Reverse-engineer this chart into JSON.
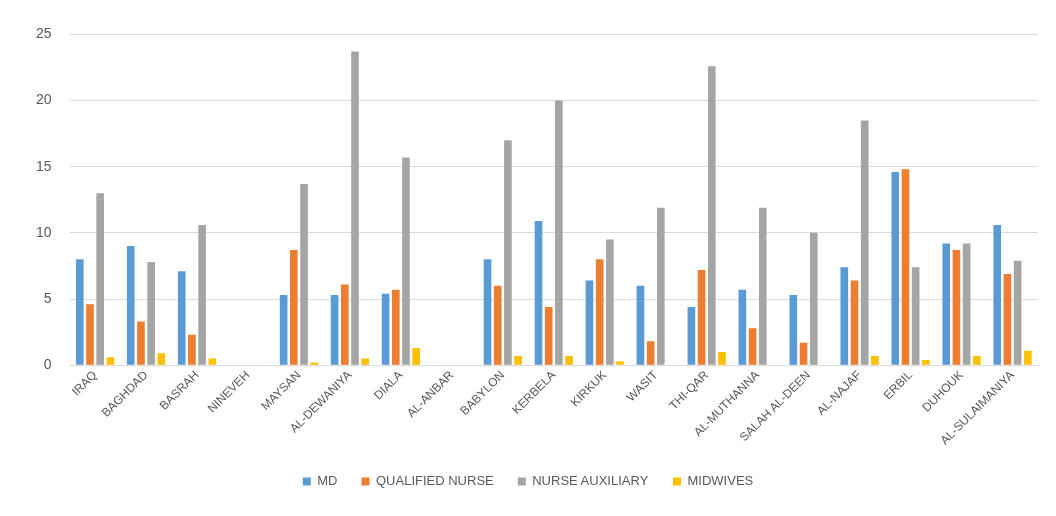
{
  "chart_data": {
    "type": "bar",
    "categories": [
      "IRAQ",
      "BAGHDAD",
      "BASRAH",
      "NINEVEH",
      "MAYSAN",
      "AL-DEWANIYA",
      "DIALA",
      "AL-ANBAR",
      "BABYLON",
      "KERBELA",
      "KIRKUK",
      "WASIT",
      "THI-QAR",
      "AL-MUTHANNA",
      "SALAH AL-DEEN",
      "AL-NAJAF",
      "ERBIL",
      "DUHOUK",
      "AL-SULAIMANIYA"
    ],
    "series": [
      {
        "name": "MD",
        "color": "#5b9bd5",
        "values": [
          8.0,
          9.0,
          7.1,
          null,
          5.3,
          5.3,
          5.4,
          null,
          8.0,
          10.9,
          6.4,
          6.0,
          4.4,
          5.7,
          5.3,
          7.4,
          14.6,
          9.2,
          10.6
        ]
      },
      {
        "name": "QUALIFIED NURSE",
        "color": "#ed7d31",
        "values": [
          4.6,
          3.3,
          2.3,
          null,
          8.7,
          6.1,
          5.7,
          null,
          6.0,
          4.4,
          8.0,
          1.8,
          7.2,
          2.8,
          1.7,
          6.4,
          14.8,
          8.7,
          6.9
        ]
      },
      {
        "name": "NURSE AUXILIARY",
        "color": "#a5a5a5",
        "values": [
          13.0,
          7.8,
          10.6,
          null,
          13.7,
          23.7,
          15.7,
          null,
          17.0,
          20.0,
          9.5,
          11.9,
          22.6,
          11.9,
          10.0,
          18.5,
          7.4,
          9.2,
          7.9
        ]
      },
      {
        "name": "MIDWIVES",
        "color": "#ffc000",
        "values": [
          0.6,
          0.9,
          0.5,
          null,
          0.2,
          0.5,
          1.3,
          null,
          0.7,
          0.7,
          0.3,
          null,
          1.0,
          null,
          null,
          0.7,
          0.4,
          0.7,
          1.1
        ]
      }
    ],
    "ylim": [
      0,
      25
    ],
    "yticks": [
      0,
      5,
      10,
      15,
      20,
      25
    ],
    "grid": "y",
    "legend": "bottom"
  }
}
